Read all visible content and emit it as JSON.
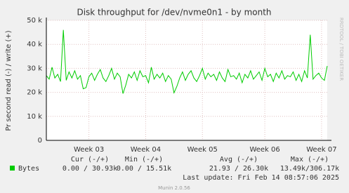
{
  "chart_data": {
    "type": "line",
    "title": "Disk throughput for /dev/nvme0n1 - by month",
    "y_label": "Pr second read (-) / write (+)",
    "side_label": "RRDTOOL / TOBI OETIKER",
    "ylim": [
      0,
      50000
    ],
    "yticks": [
      0,
      {
        "value": 10000,
        "label": "10 k"
      },
      {
        "value": 20000,
        "label": "20 k"
      },
      {
        "value": 30000,
        "label": "30 k"
      },
      {
        "value": 40000,
        "label": "40 k"
      },
      {
        "value": 50000,
        "label": "50 k"
      }
    ],
    "grid": true,
    "categories": [
      null,
      null,
      null,
      null,
      null,
      null,
      null,
      null,
      null,
      null,
      null,
      null,
      null,
      null,
      null,
      "Week 03",
      null,
      null,
      null,
      null,
      null,
      null,
      null,
      null,
      null,
      null,
      null,
      null,
      null,
      null,
      null,
      null,
      null,
      null,
      null,
      "Week 04",
      null,
      null,
      null,
      null,
      null,
      null,
      null,
      null,
      null,
      null,
      null,
      null,
      null,
      null,
      null,
      null,
      null,
      null,
      null,
      "Week 05",
      null,
      null,
      null,
      null,
      null,
      null,
      null,
      null,
      null,
      null,
      null,
      null,
      null,
      null,
      null,
      null,
      null,
      null,
      null,
      null,
      null,
      "Week 06",
      null,
      null,
      null,
      null,
      null,
      null,
      null,
      null,
      null,
      null,
      null,
      null,
      null,
      null,
      null,
      null,
      null,
      null,
      null,
      "Week 07",
      null,
      null
    ],
    "series": [
      {
        "name": "Bytes",
        "color": "#00cc00",
        "values": [
          27000,
          25500,
          30500,
          26000,
          27500,
          24500,
          46000,
          25000,
          28500,
          26000,
          29000,
          25500,
          27000,
          21500,
          22000,
          26500,
          28000,
          25000,
          27500,
          29500,
          26000,
          24500,
          27000,
          30000,
          25500,
          28000,
          26500,
          19500,
          23000,
          27500,
          26000,
          28500,
          25000,
          29000,
          26500,
          27000,
          24000,
          30500,
          25500,
          27500,
          26000,
          28000,
          24500,
          27000,
          25500,
          19800,
          22500,
          26000,
          28500,
          25000,
          27500,
          29000,
          26000,
          24500,
          27000,
          30000,
          25500,
          28000,
          26500,
          27500,
          25000,
          28500,
          26000,
          24500,
          29500,
          26500,
          27000,
          25500,
          28000,
          24000,
          27500,
          26000,
          29000,
          25500,
          27000,
          28500,
          25000,
          30000,
          26500,
          27500,
          24500,
          28000,
          26000,
          29000,
          25500,
          27000,
          26500,
          28500,
          25000,
          27500,
          24500,
          29000,
          26000,
          44000,
          25500,
          27000,
          28000,
          26000,
          25000,
          31000
        ]
      }
    ],
    "legend": {
      "headers": [
        "Cur (-/+)",
        "Min (-/+)",
        "Avg (-/+)",
        "Max (-/+)"
      ],
      "values": [
        "0.00 / 30.93k",
        "0.00 / 15.51k",
        "21.93 / 26.30k",
        "13.49k/306.17k"
      ]
    },
    "last_update": "Last update: Fri Feb 14 08:57:06 2025",
    "footer": "Munin 2.0.56"
  }
}
